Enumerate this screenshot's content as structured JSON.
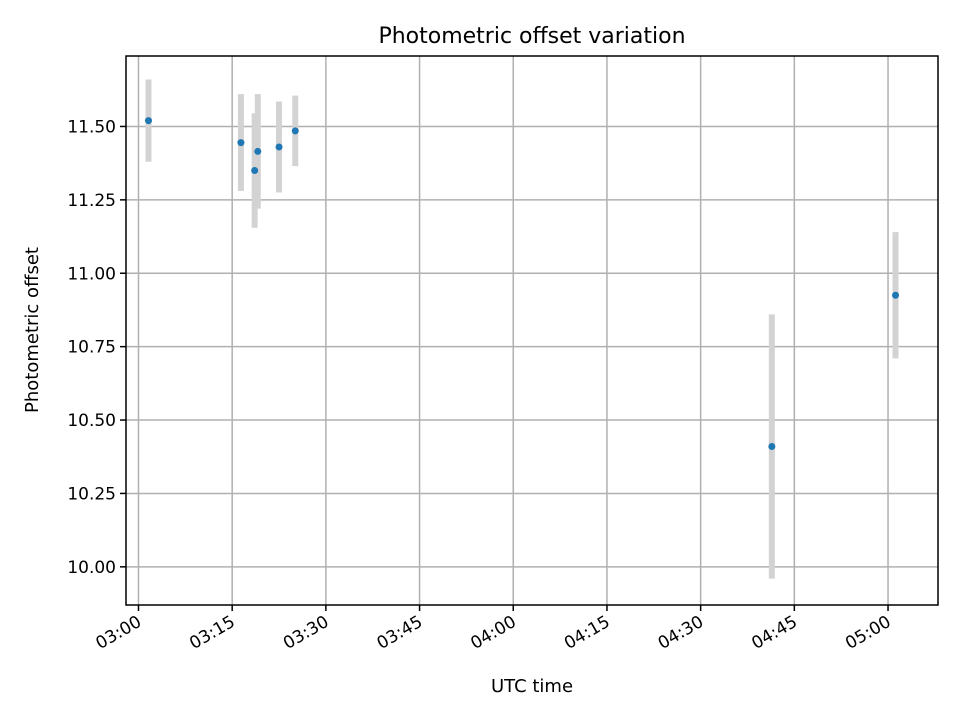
{
  "chart_data": {
    "type": "scatter",
    "title": "Photometric offset variation",
    "xlabel": "UTC time",
    "ylabel": "Photometric offset",
    "x_unit": "minutes",
    "xlim": [
      "02:58",
      "05:08"
    ],
    "ylim": [
      9.87,
      11.74
    ],
    "x_ticks": [
      "03:00",
      "03:15",
      "03:30",
      "03:45",
      "04:00",
      "04:15",
      "04:30",
      "04:45",
      "05:00"
    ],
    "y_ticks": [
      "10.00",
      "10.25",
      "10.50",
      "10.75",
      "11.00",
      "11.25",
      "11.50"
    ],
    "grid": true,
    "colors": {
      "point": "#1f77b4",
      "errorbar": "#d3d3d3",
      "grid": "#b0b0b0"
    },
    "points": [
      {
        "time": "03:01:36",
        "y": 11.52,
        "yerr": 0.14
      },
      {
        "time": "03:16:24",
        "y": 11.445,
        "yerr": 0.165
      },
      {
        "time": "03:18:36",
        "y": 11.35,
        "yerr": 0.195
      },
      {
        "time": "03:19:06",
        "y": 11.415,
        "yerr": 0.195
      },
      {
        "time": "03:22:30",
        "y": 11.43,
        "yerr": 0.155
      },
      {
        "time": "03:25:06",
        "y": 11.485,
        "yerr": 0.12
      },
      {
        "time": "04:41:24",
        "y": 10.41,
        "yerr": 0.45
      },
      {
        "time": "05:01:12",
        "y": 10.925,
        "yerr": 0.215
      }
    ]
  }
}
